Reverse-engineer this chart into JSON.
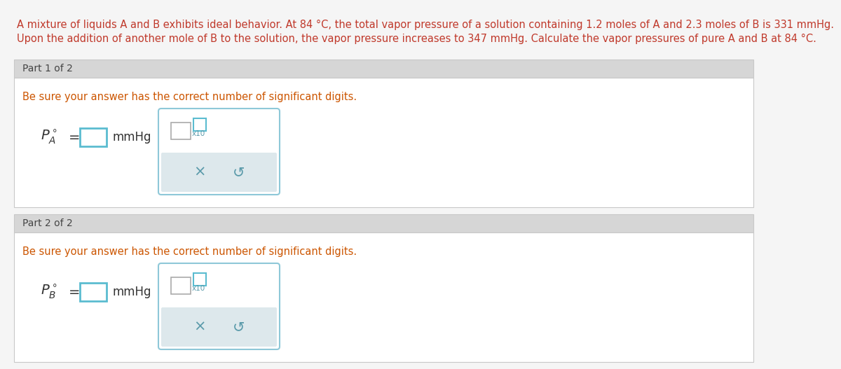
{
  "bg_color": "#ffffff",
  "page_bg": "#f5f5f5",
  "header_bg": "#d6d6d6",
  "section_bg": "#ffffff",
  "section_border": "#c8c8c8",
  "text_black": "#2a2a2a",
  "text_red": "#c0392b",
  "text_orange": "#cc5500",
  "text_blue_instr": "#c0550a",
  "text_teal": "#3a8fa0",
  "text_dark": "#444444",
  "input_border": "#5bbcd0",
  "input_border2": "#5bbcd0",
  "widget_border": "#8ec8d8",
  "widget_bg": "#ffffff",
  "button_bar_bg": "#dde8ec",
  "button_icon_color": "#5a9aaa",
  "x10_color": "#5a9aaa",
  "formula_color": "#333333",
  "intro_line1": "A mixture of liquids A and B exhibits ideal behavior. At 84 °C, the total vapor pressure of a solution containing 1.2 moles of A and 2.3 moles of B is 331 mmHg.",
  "intro_line2": "Upon the addition of another mole of B to the solution, the vapor pressure increases to 347 mmHg. Calculate the vapor pressures of pure A and B at 84 °C.",
  "part1_header": "Part 1 of 2",
  "part2_header": "Part 2 of 2",
  "instruction": "Be sure your answer has the correct number of significant digits.",
  "unit": "mmHg",
  "part1_sub": "A",
  "part2_sub": "B",
  "intro_fontsize": 10.5,
  "header_fontsize": 10.0,
  "instr_fontsize": 10.5,
  "formula_fontsize": 14,
  "unit_fontsize": 12
}
